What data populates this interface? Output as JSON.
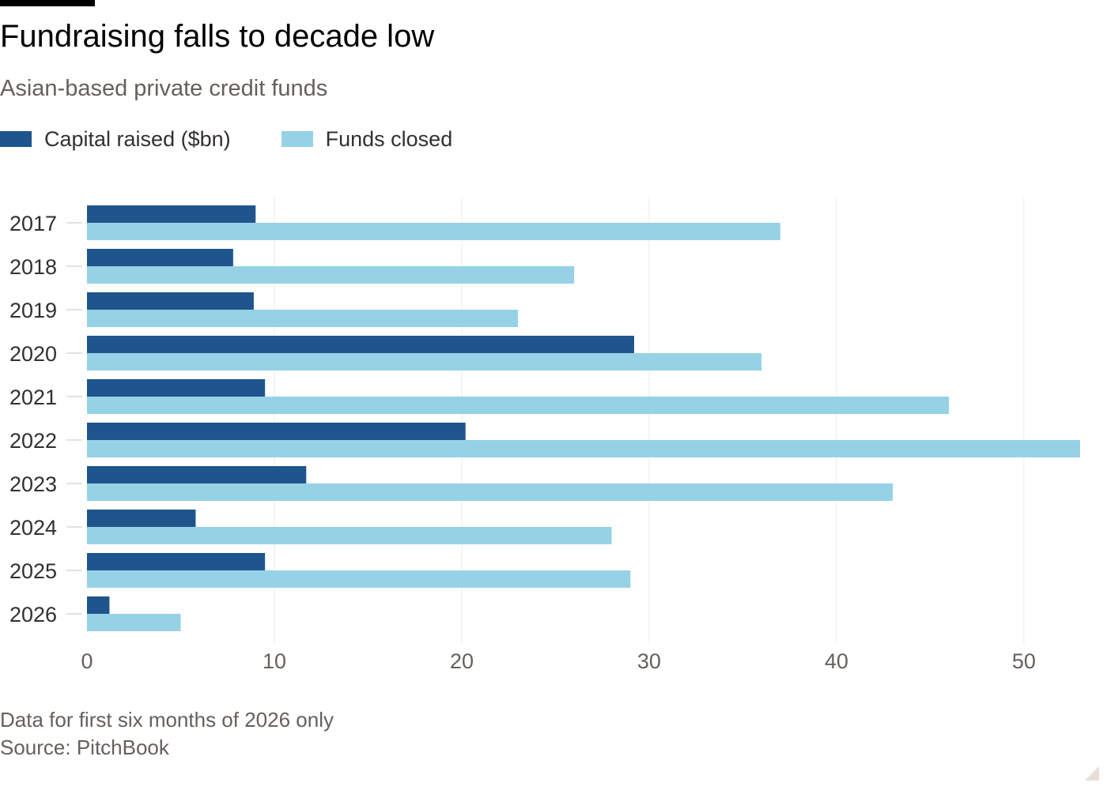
{
  "header": {
    "title": "Fundraising falls to decade low",
    "subtitle": "Asian-based private credit funds"
  },
  "legend": {
    "items": [
      {
        "label": "Capital raised ($bn)",
        "color": "#1e558c"
      },
      {
        "label": "Funds closed",
        "color": "#96d2e6"
      }
    ]
  },
  "chart_data": {
    "type": "bar",
    "orientation": "horizontal",
    "title": "Fundraising falls to decade low",
    "subtitle": "Asian-based private credit funds",
    "categories": [
      "2017",
      "2018",
      "2019",
      "2020",
      "2021",
      "2022",
      "2023",
      "2024",
      "2025",
      "2026"
    ],
    "series": [
      {
        "name": "Capital raised ($bn)",
        "color": "#1e558c",
        "values": [
          9.0,
          7.8,
          8.9,
          29.2,
          9.5,
          20.2,
          11.7,
          5.8,
          9.5,
          1.2
        ]
      },
      {
        "name": "Funds closed",
        "color": "#96d2e6",
        "values": [
          37,
          26,
          23,
          36,
          46,
          53,
          43,
          28,
          29,
          5
        ]
      }
    ],
    "x_ticks": [
      0,
      10,
      20,
      30,
      40,
      50
    ],
    "xlim": [
      0,
      53
    ],
    "xlabel": "",
    "ylabel": "",
    "grid": "vertical",
    "legend_position": "top-left"
  },
  "footer": {
    "note": "Data for first six months of 2026 only",
    "source": "Source: PitchBook"
  }
}
